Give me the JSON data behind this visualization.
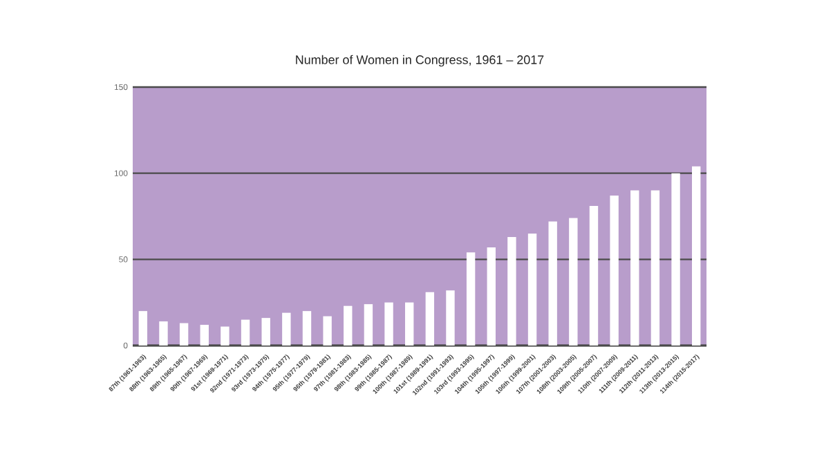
{
  "chart_data": {
    "type": "bar",
    "title": "Number of Women in Congress, 1961 – 2017",
    "categories": [
      "87th (1961-1963)",
      "88th (1963-1965)",
      "89th (1965-1967)",
      "90th (1967-1969)",
      "91st (1969-1971)",
      "92nd (1971-1973)",
      "93rd (1973-1975)",
      "94th (1975-1977)",
      "95th (1977-1979)",
      "96th (1979-1981)",
      "97th (1981-1983)",
      "98th (1983-1985)",
      "99th (1985-1987)",
      "100th (1987-1989)",
      "101st (1989-1991)",
      "102nd (1991-1993)",
      "103rd (1993-1995)",
      "104th (1995-1997)",
      "105th (1997-1999)",
      "106th (1999-2001)",
      "107th (2001-2003)",
      "108th (2003-2005)",
      "109th (2005-2007)",
      "110th (2007-2009)",
      "111th (2009-2011)",
      "112th (2011-2013)",
      "113th (2013-2015)",
      "114th (2015-2017)"
    ],
    "values": [
      20,
      14,
      13,
      12,
      11,
      15,
      16,
      19,
      20,
      17,
      23,
      24,
      25,
      25,
      31,
      32,
      54,
      57,
      63,
      65,
      72,
      74,
      81,
      87,
      90,
      90,
      100,
      104
    ],
    "color": "#ffffff",
    "ylim": [
      0,
      150
    ],
    "yticks": [
      0,
      50,
      100,
      150
    ],
    "grid": "y"
  }
}
